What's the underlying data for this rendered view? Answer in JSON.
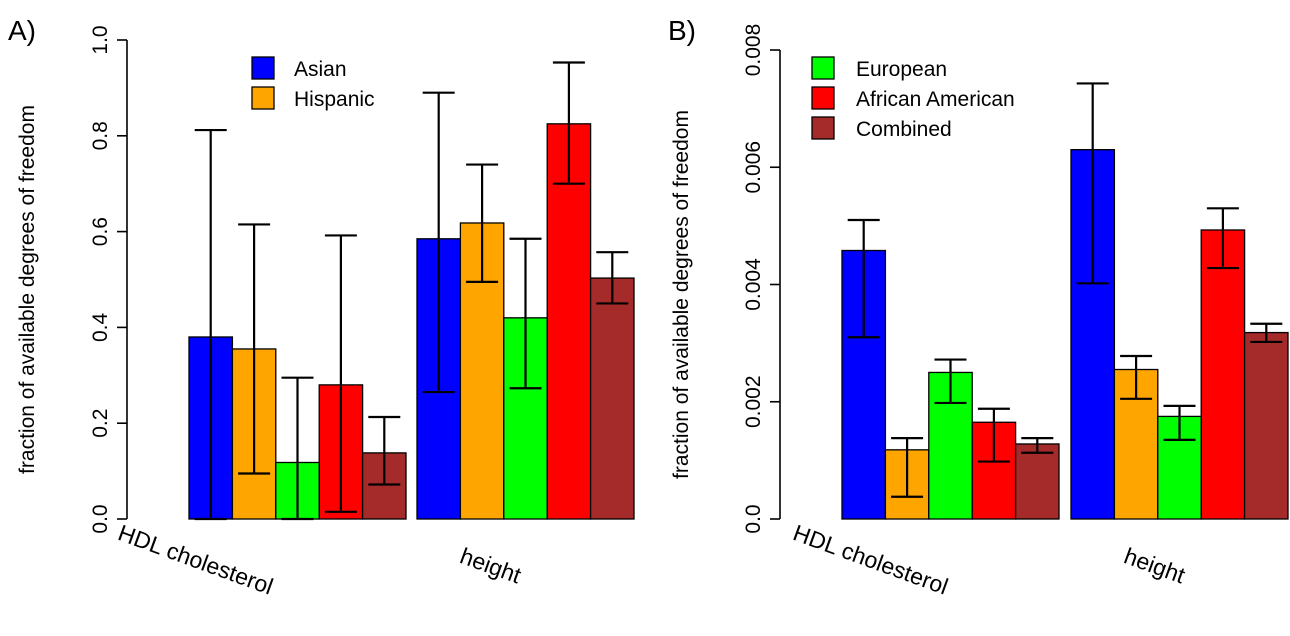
{
  "chart_data": [
    {
      "type": "bar",
      "panel_label": "A)",
      "ylabel": "fraction of available degrees of freedom",
      "ylim": [
        0,
        1.0
      ],
      "yticks": [
        "0.0",
        "0.2",
        "0.4",
        "0.6",
        "0.8",
        "1.0"
      ],
      "categories": [
        "HDL cholesterol",
        "height"
      ],
      "legend": {
        "placement": "top-center",
        "entries": [
          "Asian",
          "Hispanic"
        ]
      },
      "series": [
        {
          "name": "Asian",
          "color": "#0000ff",
          "values": [
            0.38,
            0.585
          ],
          "err_low": [
            0.0,
            0.265
          ],
          "err_high": [
            0.812,
            0.89
          ]
        },
        {
          "name": "Hispanic",
          "color": "#ffa500",
          "values": [
            0.355,
            0.618
          ],
          "err_low": [
            0.095,
            0.495
          ],
          "err_high": [
            0.615,
            0.74
          ]
        },
        {
          "name": "European",
          "color": "#00ff00",
          "values": [
            0.118,
            0.42
          ],
          "err_low": [
            0.0,
            0.273
          ],
          "err_high": [
            0.295,
            0.585
          ]
        },
        {
          "name": "African American",
          "color": "#ff0000",
          "values": [
            0.28,
            0.825
          ],
          "err_low": [
            0.015,
            0.7
          ],
          "err_high": [
            0.592,
            0.953
          ]
        },
        {
          "name": "Combined",
          "color": "#a52a2a",
          "values": [
            0.138,
            0.503
          ],
          "err_low": [
            0.072,
            0.45
          ],
          "err_high": [
            0.213,
            0.557
          ]
        }
      ]
    },
    {
      "type": "bar",
      "panel_label": "B)",
      "ylabel": "fraction of available degrees of freedom",
      "ylim": [
        0,
        0.008
      ],
      "yticks": [
        "0.0",
        "0.002",
        "0.004",
        "0.006",
        "0.008"
      ],
      "categories": [
        "HDL cholesterol",
        "height"
      ],
      "legend": {
        "placement": "top-left",
        "entries": [
          "European",
          "African American",
          "Combined"
        ]
      },
      "series": [
        {
          "name": "Asian",
          "color": "#0000ff",
          "values": [
            0.00458,
            0.0063
          ],
          "err_low": [
            0.0031,
            0.00402
          ],
          "err_high": [
            0.0051,
            0.00743
          ]
        },
        {
          "name": "Hispanic",
          "color": "#ffa500",
          "values": [
            0.00118,
            0.00255
          ],
          "err_low": [
            0.00038,
            0.00205
          ],
          "err_high": [
            0.00138,
            0.00278
          ]
        },
        {
          "name": "European",
          "color": "#00ff00",
          "values": [
            0.0025,
            0.00175
          ],
          "err_low": [
            0.00198,
            0.00135
          ],
          "err_high": [
            0.00272,
            0.00193
          ]
        },
        {
          "name": "African American",
          "color": "#ff0000",
          "values": [
            0.00165,
            0.00493
          ],
          "err_low": [
            0.00098,
            0.00428
          ],
          "err_high": [
            0.00188,
            0.0053
          ]
        },
        {
          "name": "Combined",
          "color": "#a52a2a",
          "values": [
            0.00128,
            0.00318
          ],
          "err_low": [
            0.00113,
            0.00302
          ],
          "err_high": [
            0.00138,
            0.00333
          ]
        }
      ]
    }
  ]
}
